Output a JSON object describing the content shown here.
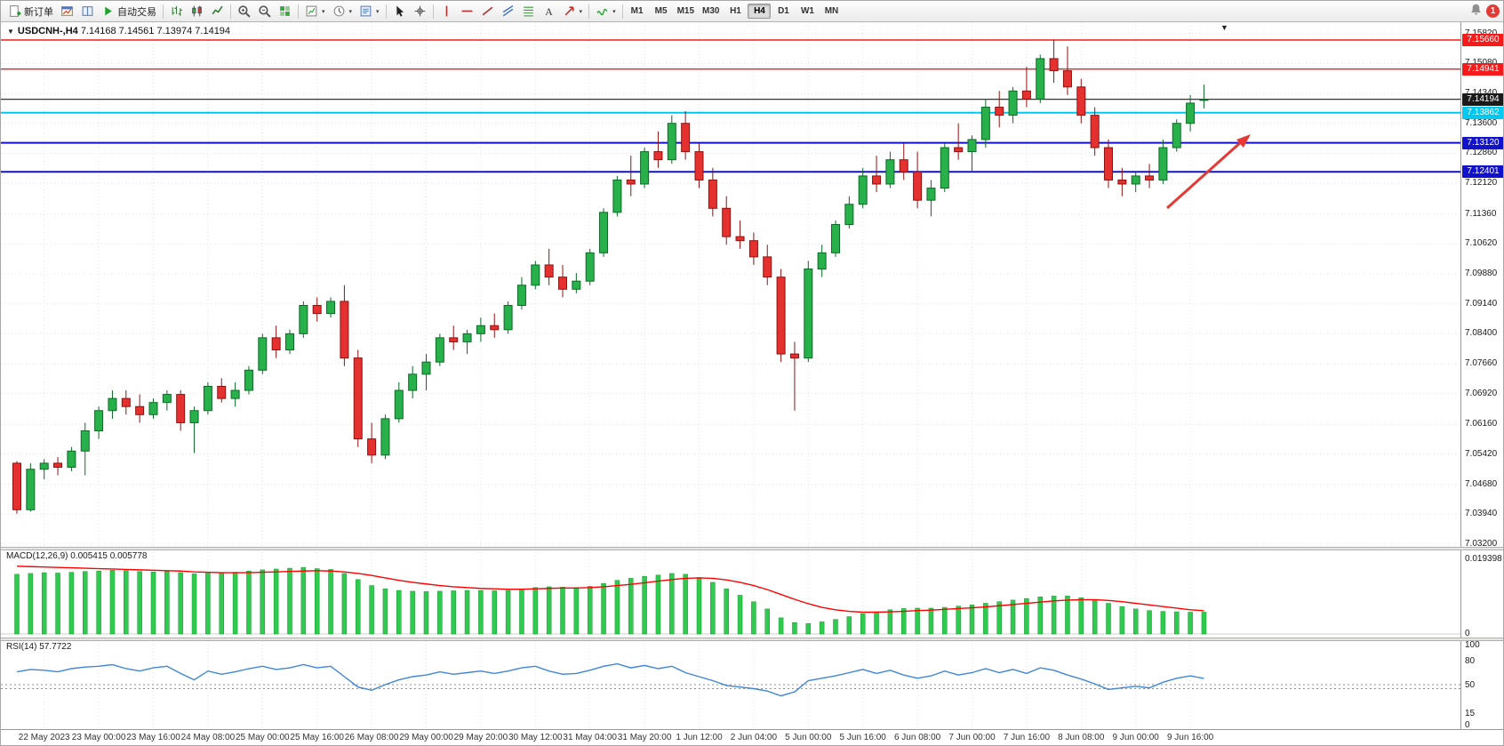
{
  "toolbar": {
    "new_order_label": "新订单",
    "autotrading_label": "自动交易",
    "notification_badge": "1",
    "items": [
      {
        "name": "new-order-button",
        "icon": "page_plus",
        "label": "新订单"
      },
      {
        "name": "charts-window-button",
        "icon": "chart_win"
      },
      {
        "name": "market-watch-button",
        "icon": "book"
      },
      {
        "name": "autotrading-button",
        "icon": "play",
        "label": "自动交易"
      },
      {
        "sep": true
      },
      {
        "name": "bar-chart-type-button",
        "icon": "bars_ct"
      },
      {
        "name": "candlestick-chart-type-button",
        "icon": "candles_ct"
      },
      {
        "name": "line-chart-type-button",
        "icon": "line_ct"
      },
      {
        "sep": true
      },
      {
        "name": "zoom-in-button",
        "icon": "zoom_in"
      },
      {
        "name": "zoom-out-button",
        "icon": "zoom_out"
      },
      {
        "name": "tile-windows-button",
        "icon": "tiles"
      },
      {
        "sep": true
      },
      {
        "name": "new-chart-button",
        "icon": "new_chart",
        "caret": true
      },
      {
        "name": "profiles-button",
        "icon": "clock",
        "caret": true
      },
      {
        "name": "templates-button",
        "icon": "template",
        "caret": true
      },
      {
        "sep": true
      },
      {
        "name": "cursor-button",
        "icon": "cursor"
      },
      {
        "name": "crosshair-button",
        "icon": "crosshair"
      },
      {
        "sep": true
      },
      {
        "name": "vertical-line-button",
        "icon": "vline"
      },
      {
        "name": "horizontal-line-button",
        "icon": "hline"
      },
      {
        "name": "trendline-button",
        "icon": "trend"
      },
      {
        "name": "equidistant-channel-button",
        "icon": "channel"
      },
      {
        "name": "fibonacci-button",
        "icon": "fibo"
      },
      {
        "name": "text-label-button",
        "icon": "text_t"
      },
      {
        "name": "arrows-button",
        "icon": "arrowmark",
        "caret": true
      },
      {
        "sep": true
      },
      {
        "name": "indicators-button",
        "icon": "indicators",
        "caret": true
      },
      {
        "sep": true
      }
    ],
    "timeframes": [
      "M1",
      "M5",
      "M15",
      "M30",
      "H1",
      "H4",
      "D1",
      "W1",
      "MN"
    ],
    "active_timeframe": "H4"
  },
  "chart": {
    "title": "USDCNH-,H4",
    "ohlc": "7.14168 7.14561 7.13974 7.14194",
    "shift_marker": "▼",
    "collapse_marker": "▼",
    "price_ticks": [
      "7.15820",
      "7.15080",
      "7.14340",
      "7.13600",
      "7.12860",
      "7.12120",
      "7.11360",
      "7.10620",
      "7.09880",
      "7.09140",
      "7.08400",
      "7.07660",
      "7.06920",
      "7.06160",
      "7.05420",
      "7.04680",
      "7.03940",
      "7.03200"
    ],
    "levels": [
      {
        "price": 7.1566,
        "label": "7.15660",
        "color": "#f61b1b",
        "width": 1.4
      },
      {
        "price": 7.14941,
        "label": "7.14941",
        "color": "#f61b1b",
        "width": 1.4
      },
      {
        "price": 7.14194,
        "label": "7.14194",
        "color": "#1a1a1a",
        "width": 1.2
      },
      {
        "price": 7.13862,
        "label": "7.13862",
        "color": "#00c8f0",
        "width": 2
      },
      {
        "price": 7.1312,
        "label": "7.13120",
        "color": "#1212cc",
        "width": 2
      },
      {
        "price": 7.12401,
        "label": "7.12401",
        "color": "#1212cc",
        "width": 2
      }
    ],
    "x_labels": [
      "22 May 2023",
      "23 May 00:00",
      "23 May 16:00",
      "24 May 08:00",
      "25 May 00:00",
      "25 May 16:00",
      "26 May 08:00",
      "29 May 00:00",
      "29 May 20:00",
      "30 May 12:00",
      "31 May 04:00",
      "31 May 20:00",
      "1 Jun 12:00",
      "2 Jun 04:00",
      "5 Jun 00:00",
      "5 Jun 16:00",
      "6 Jun 08:00",
      "7 Jun 00:00",
      "7 Jun 16:00",
      "8 Jun 08:00",
      "9 Jun 00:00",
      "9 Jun 16:00"
    ],
    "x_label_start_index": 2,
    "x_label_step": 4,
    "candles": [
      [
        7.052,
        7.0525,
        7.0395,
        7.0405
      ],
      [
        7.0405,
        7.052,
        7.04,
        7.0505
      ],
      [
        7.0505,
        7.053,
        7.048,
        7.052
      ],
      [
        7.052,
        7.0535,
        7.049,
        7.051
      ],
      [
        7.051,
        7.056,
        7.05,
        7.055
      ],
      [
        7.055,
        7.062,
        7.049,
        7.06
      ],
      [
        7.06,
        7.066,
        7.058,
        7.065
      ],
      [
        7.065,
        7.07,
        7.063,
        7.068
      ],
      [
        7.068,
        7.07,
        7.064,
        7.066
      ],
      [
        7.066,
        7.069,
        7.062,
        7.064
      ],
      [
        7.064,
        7.068,
        7.063,
        7.067
      ],
      [
        7.067,
        7.07,
        7.065,
        7.069
      ],
      [
        7.069,
        7.07,
        7.06,
        7.062
      ],
      [
        7.062,
        7.066,
        7.0545,
        7.065
      ],
      [
        7.065,
        7.072,
        7.064,
        7.071
      ],
      [
        7.071,
        7.073,
        7.067,
        7.068
      ],
      [
        7.068,
        7.072,
        7.066,
        7.07
      ],
      [
        7.07,
        7.076,
        7.069,
        7.075
      ],
      [
        7.075,
        7.084,
        7.074,
        7.083
      ],
      [
        7.083,
        7.086,
        7.078,
        7.08
      ],
      [
        7.08,
        7.085,
        7.079,
        7.084
      ],
      [
        7.084,
        7.092,
        7.083,
        7.091
      ],
      [
        7.091,
        7.093,
        7.087,
        7.089
      ],
      [
        7.089,
        7.093,
        7.088,
        7.092
      ],
      [
        7.092,
        7.096,
        7.076,
        7.078
      ],
      [
        7.078,
        7.08,
        7.056,
        7.058
      ],
      [
        7.058,
        7.062,
        7.052,
        7.054
      ],
      [
        7.054,
        7.064,
        7.053,
        7.063
      ],
      [
        7.063,
        7.072,
        7.062,
        7.07
      ],
      [
        7.07,
        7.076,
        7.068,
        7.074
      ],
      [
        7.074,
        7.079,
        7.07,
        7.077
      ],
      [
        7.077,
        7.084,
        7.076,
        7.083
      ],
      [
        7.083,
        7.086,
        7.08,
        7.082
      ],
      [
        7.082,
        7.085,
        7.079,
        7.084
      ],
      [
        7.084,
        7.088,
        7.082,
        7.086
      ],
      [
        7.086,
        7.089,
        7.083,
        7.085
      ],
      [
        7.085,
        7.092,
        7.084,
        7.091
      ],
      [
        7.091,
        7.098,
        7.09,
        7.096
      ],
      [
        7.096,
        7.102,
        7.095,
        7.101
      ],
      [
        7.101,
        7.105,
        7.096,
        7.098
      ],
      [
        7.098,
        7.101,
        7.093,
        7.095
      ],
      [
        7.095,
        7.099,
        7.094,
        7.097
      ],
      [
        7.097,
        7.105,
        7.096,
        7.104
      ],
      [
        7.104,
        7.115,
        7.103,
        7.114
      ],
      [
        7.114,
        7.123,
        7.113,
        7.122
      ],
      [
        7.122,
        7.128,
        7.118,
        7.121
      ],
      [
        7.121,
        7.13,
        7.12,
        7.129
      ],
      [
        7.129,
        7.134,
        7.125,
        7.127
      ],
      [
        7.127,
        7.138,
        7.126,
        7.136
      ],
      [
        7.136,
        7.139,
        7.127,
        7.129
      ],
      [
        7.129,
        7.131,
        7.12,
        7.122
      ],
      [
        7.122,
        7.125,
        7.113,
        7.115
      ],
      [
        7.115,
        7.118,
        7.106,
        7.108
      ],
      [
        7.108,
        7.112,
        7.105,
        7.107
      ],
      [
        7.107,
        7.109,
        7.101,
        7.103
      ],
      [
        7.103,
        7.106,
        7.096,
        7.098
      ],
      [
        7.098,
        7.1,
        7.077,
        7.079
      ],
      [
        7.079,
        7.082,
        7.065,
        7.078
      ],
      [
        7.078,
        7.102,
        7.077,
        7.1
      ],
      [
        7.1,
        7.106,
        7.098,
        7.104
      ],
      [
        7.104,
        7.112,
        7.103,
        7.111
      ],
      [
        7.111,
        7.118,
        7.11,
        7.116
      ],
      [
        7.116,
        7.125,
        7.115,
        7.123
      ],
      [
        7.123,
        7.128,
        7.119,
        7.121
      ],
      [
        7.121,
        7.129,
        7.12,
        7.127
      ],
      [
        7.127,
        7.131,
        7.122,
        7.124
      ],
      [
        7.124,
        7.129,
        7.115,
        7.117
      ],
      [
        7.117,
        7.122,
        7.113,
        7.12
      ],
      [
        7.12,
        7.131,
        7.119,
        7.13
      ],
      [
        7.13,
        7.136,
        7.127,
        7.129
      ],
      [
        7.129,
        7.133,
        7.124,
        7.132
      ],
      [
        7.132,
        7.142,
        7.13,
        7.14
      ],
      [
        7.14,
        7.144,
        7.135,
        7.138
      ],
      [
        7.138,
        7.145,
        7.136,
        7.144
      ],
      [
        7.144,
        7.15,
        7.14,
        7.142
      ],
      [
        7.142,
        7.153,
        7.141,
        7.152
      ],
      [
        7.152,
        7.1566,
        7.146,
        7.149
      ],
      [
        7.149,
        7.155,
        7.143,
        7.145
      ],
      [
        7.145,
        7.147,
        7.136,
        7.138
      ],
      [
        7.138,
        7.14,
        7.128,
        7.13
      ],
      [
        7.13,
        7.132,
        7.12,
        7.122
      ],
      [
        7.122,
        7.125,
        7.118,
        7.121
      ],
      [
        7.121,
        7.124,
        7.119,
        7.123
      ],
      [
        7.123,
        7.126,
        7.12,
        7.122
      ],
      [
        7.122,
        7.132,
        7.121,
        7.13
      ],
      [
        7.13,
        7.137,
        7.129,
        7.136
      ],
      [
        7.136,
        7.143,
        7.134,
        7.141
      ],
      [
        7.1417,
        7.1456,
        7.1397,
        7.1419
      ]
    ],
    "up_color": "#28b14b",
    "up_border": "#0c6b26",
    "down_color": "#e53030",
    "down_border": "#8f1210",
    "arrow_color": "#e53935"
  },
  "macd": {
    "name": "MACD(12,26,9)",
    "values": "0.005415 0.005778",
    "axis_max_label": "0.019398",
    "axis_min_label": "0",
    "bar_color": "#2fca4f",
    "signal_color": "#ff0000",
    "histogram": [
      0.0148,
      0.015,
      0.0152,
      0.0151,
      0.0153,
      0.0155,
      0.0156,
      0.0158,
      0.0157,
      0.0155,
      0.0154,
      0.0155,
      0.0152,
      0.0149,
      0.0151,
      0.0152,
      0.0153,
      0.0156,
      0.0159,
      0.0161,
      0.0163,
      0.0165,
      0.0162,
      0.016,
      0.015,
      0.0135,
      0.012,
      0.0112,
      0.0108,
      0.0106,
      0.0105,
      0.0106,
      0.0107,
      0.0108,
      0.0108,
      0.0107,
      0.0108,
      0.0111,
      0.0115,
      0.0117,
      0.0116,
      0.0115,
      0.0118,
      0.0125,
      0.0133,
      0.0138,
      0.0143,
      0.0146,
      0.015,
      0.0148,
      0.014,
      0.0128,
      0.0112,
      0.0096,
      0.008,
      0.0062,
      0.004,
      0.0028,
      0.0026,
      0.003,
      0.0036,
      0.0043,
      0.005,
      0.0055,
      0.006,
      0.0063,
      0.0064,
      0.0064,
      0.0066,
      0.0069,
      0.0072,
      0.0076,
      0.008,
      0.0084,
      0.0088,
      0.0092,
      0.0094,
      0.0094,
      0.009,
      0.0084,
      0.0076,
      0.0068,
      0.0062,
      0.0058,
      0.0056,
      0.0055,
      0.0054,
      0.005415
    ],
    "signal": [
      0.0168,
      0.0167,
      0.0166,
      0.0165,
      0.0164,
      0.0163,
      0.0162,
      0.0161,
      0.016,
      0.0159,
      0.0158,
      0.0157,
      0.0156,
      0.0154,
      0.0153,
      0.0152,
      0.0152,
      0.0152,
      0.0153,
      0.0154,
      0.0155,
      0.0156,
      0.0157,
      0.0156,
      0.0154,
      0.015,
      0.0145,
      0.0139,
      0.0133,
      0.0128,
      0.0124,
      0.012,
      0.0117,
      0.0115,
      0.0113,
      0.0112,
      0.0111,
      0.0111,
      0.0112,
      0.0113,
      0.0114,
      0.0114,
      0.0115,
      0.0117,
      0.012,
      0.0123,
      0.0127,
      0.0131,
      0.0135,
      0.0138,
      0.0139,
      0.0138,
      0.0134,
      0.0128,
      0.012,
      0.011,
      0.0098,
      0.0086,
      0.0075,
      0.0066,
      0.006,
      0.0056,
      0.0054,
      0.0054,
      0.0055,
      0.0056,
      0.0058,
      0.0059,
      0.0061,
      0.0063,
      0.0065,
      0.0067,
      0.007,
      0.0073,
      0.0076,
      0.0079,
      0.0082,
      0.0084,
      0.0085,
      0.0085,
      0.0083,
      0.008,
      0.0076,
      0.0072,
      0.0068,
      0.0064,
      0.006,
      0.005778
    ]
  },
  "rsi": {
    "name": "RSI(14)",
    "value": "57.7722",
    "line_color": "#3f86d8",
    "axis_labels": [
      "100",
      "80",
      "50",
      "15",
      "0"
    ],
    "axis_values": [
      100,
      80,
      50,
      15,
      0
    ],
    "level_lines": [
      50,
      45
    ],
    "values": [
      66,
      69,
      68,
      66,
      70,
      72,
      73,
      75,
      70,
      67,
      71,
      73,
      64,
      56,
      67,
      63,
      66,
      70,
      73,
      69,
      71,
      75,
      71,
      73,
      60,
      47,
      43,
      50,
      56,
      60,
      62,
      66,
      63,
      65,
      67,
      64,
      67,
      71,
      73,
      67,
      63,
      64,
      68,
      73,
      76,
      71,
      74,
      70,
      73,
      65,
      60,
      55,
      49,
      47,
      45,
      42,
      36,
      41,
      55,
      58,
      61,
      65,
      69,
      64,
      68,
      62,
      58,
      61,
      67,
      62,
      65,
      70,
      65,
      69,
      64,
      71,
      68,
      62,
      57,
      51,
      44,
      46,
      48,
      46,
      53,
      58,
      61,
      57.77
    ]
  }
}
